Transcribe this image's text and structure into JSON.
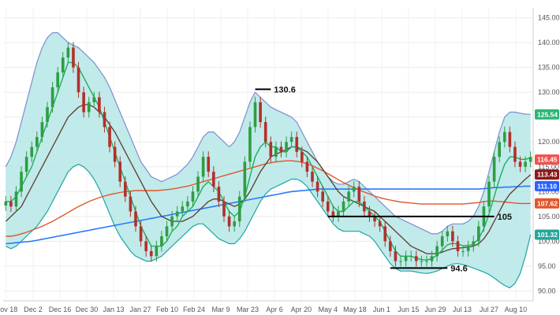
{
  "chart_data": {
    "type": "candlestick",
    "title": "",
    "xlabel": "",
    "ylabel": "",
    "ylim": [
      88,
      147
    ],
    "y_ticks": [
      "145.00",
      "140.00",
      "135.00",
      "130.00",
      "125.00",
      "120.00",
      "115.00",
      "110.00",
      "105.00",
      "100.00",
      "95.00",
      "90.00"
    ],
    "y_tick_values": [
      145,
      140,
      135,
      130,
      125,
      120,
      115,
      110,
      105,
      100,
      95,
      90
    ],
    "x_ticks": [
      "Nov 18",
      "Dec 2",
      "Dec 16",
      "Dec 30",
      "Jan 13",
      "Jan 27",
      "Feb 10",
      "Feb 24",
      "Mar 9",
      "Mar 23",
      "Apr 6",
      "Apr 20",
      "May 4",
      "May 18",
      "Jun 1",
      "Jun 15",
      "Jun 29",
      "Jul 13",
      "Jul 27",
      "Aug 10"
    ],
    "grid": true,
    "series": [
      {
        "role": "close",
        "values": [
          108,
          107,
          110,
          114,
          117,
          119,
          121,
          124,
          127,
          131,
          134,
          137,
          139,
          135,
          130,
          126,
          128,
          129,
          126,
          123,
          119,
          116,
          112,
          109,
          106,
          103,
          100,
          98,
          97,
          99,
          101,
          103,
          105,
          106,
          107,
          108,
          110,
          113,
          117,
          114,
          111,
          108,
          105,
          103,
          104,
          109,
          116,
          123,
          128,
          124,
          120,
          117,
          119,
          118,
          120,
          121,
          118,
          116,
          114,
          112,
          110,
          108,
          106,
          105,
          106,
          108,
          110,
          111,
          108,
          106,
          105,
          104,
          103,
          100,
          98,
          96,
          96,
          97,
          97,
          96,
          96,
          96,
          97,
          99,
          101,
          102,
          100,
          98,
          98,
          99,
          100,
          103,
          107,
          112,
          117,
          120,
          122,
          119,
          116,
          115,
          116,
          117
        ]
      },
      {
        "role": "ma_fast",
        "values": [
          108,
          108,
          109,
          111,
          113,
          115,
          118,
          121,
          124,
          127,
          130,
          133,
          136,
          136,
          135,
          133,
          131,
          129,
          127,
          124,
          121,
          118,
          115,
          112,
          109,
          106,
          103,
          101,
          99,
          99,
          99,
          100,
          102,
          103,
          105,
          106,
          107,
          109,
          111,
          112,
          111,
          110,
          108,
          106,
          105,
          106,
          109,
          113,
          117,
          119,
          120,
          119,
          119,
          118,
          118,
          119,
          119,
          118,
          117,
          115,
          113,
          111,
          109,
          107,
          106,
          106,
          107,
          108,
          108,
          107,
          106,
          105,
          104,
          102,
          100,
          98,
          97,
          97,
          97,
          96.6,
          96.3,
          96.2,
          96.5,
          97.2,
          98.2,
          99.3,
          99.6,
          99.4,
          99.1,
          99.1,
          99.4,
          100.5,
          102.5,
          105.5,
          109,
          112.5,
          115.5,
          117,
          117,
          116.5,
          116.5,
          116.8
        ]
      },
      {
        "role": "ma_mid",
        "values": [
          104,
          105,
          106,
          107,
          109,
          111,
          113,
          115,
          117,
          119,
          121,
          123,
          125,
          126,
          127,
          127.5,
          127.5,
          127,
          126,
          125,
          123.5,
          122,
          120,
          118,
          116,
          114,
          112,
          110,
          108,
          106.5,
          105,
          104.5,
          104,
          104,
          104,
          104.5,
          105,
          106,
          107,
          108,
          108.5,
          108.5,
          108,
          107.5,
          107,
          107.5,
          108.5,
          110,
          112,
          114,
          115.5,
          117,
          117.5,
          118,
          118.5,
          119,
          119,
          118.5,
          118,
          117,
          116,
          114.5,
          113,
          111.5,
          110,
          109,
          108.5,
          108,
          107.5,
          107,
          106.5,
          106,
          105,
          104,
          103,
          102,
          101,
          100,
          99,
          98.5,
          98,
          97.5,
          97.5,
          97.5,
          97.8,
          98.2,
          98.5,
          98.6,
          98.7,
          98.8,
          99,
          99.5,
          100.5,
          102,
          104,
          106,
          108,
          109.5,
          110.5,
          111.5,
          112.5,
          113.4
        ]
      },
      {
        "role": "ma_long",
        "values": [
          101,
          101,
          101.2,
          101.5,
          101.8,
          102.2,
          102.6,
          103,
          103.5,
          104,
          104.6,
          105.2,
          105.8,
          106.4,
          107,
          107.5,
          108,
          108.4,
          108.8,
          109.1,
          109.4,
          109.6,
          109.8,
          110,
          110.1,
          110.2,
          110.2,
          110.2,
          110.2,
          110.2,
          110.3,
          110.4,
          110.5,
          110.7,
          110.9,
          111.1,
          111.4,
          111.7,
          112,
          112.3,
          112.6,
          112.9,
          113.2,
          113.5,
          113.8,
          114.1,
          114.4,
          114.7,
          115,
          115.3,
          115.6,
          115.8,
          116,
          116.1,
          116.2,
          116.2,
          116.1,
          115.9,
          115.6,
          115.2,
          114.7,
          114.2,
          113.6,
          113,
          112.4,
          111.8,
          111.3,
          110.8,
          110.3,
          109.9,
          109.5,
          109.1,
          108.8,
          108.5,
          108.3,
          108.1,
          107.9,
          107.8,
          107.7,
          107.6,
          107.5,
          107.5,
          107.5,
          107.5,
          107.5,
          107.5,
          107.5,
          107.5,
          107.5,
          107.6,
          107.7,
          107.8,
          108,
          108.1,
          108.1,
          108,
          107.9,
          107.8,
          107.7,
          107.6,
          107.6,
          107.62
        ]
      },
      {
        "role": "ma_longest",
        "values": [
          99.5,
          99.6,
          99.7,
          99.8,
          99.9,
          100,
          100.2,
          100.4,
          100.6,
          100.8,
          101,
          101.2,
          101.4,
          101.6,
          101.8,
          102,
          102.2,
          102.4,
          102.6,
          102.8,
          103,
          103.2,
          103.4,
          103.6,
          103.8,
          104,
          104.2,
          104.4,
          104.6,
          104.8,
          105,
          105.2,
          105.4,
          105.6,
          105.8,
          106,
          106.2,
          106.4,
          106.6,
          106.8,
          107,
          107.2,
          107.4,
          107.6,
          107.8,
          108,
          108.2,
          108.4,
          108.6,
          108.8,
          109,
          109.2,
          109.4,
          109.6,
          109.8,
          110,
          110.1,
          110.2,
          110.3,
          110.4,
          110.5,
          110.5,
          110.5,
          110.5,
          110.5,
          110.5,
          110.5,
          110.5,
          110.5,
          110.5,
          110.5,
          110.5,
          110.5,
          110.5,
          110.5,
          110.5,
          110.5,
          110.5,
          110.5,
          110.5,
          110.5,
          110.5,
          110.5,
          110.5,
          110.5,
          110.5,
          110.5,
          110.5,
          110.5,
          110.5,
          110.5,
          110.5,
          110.6,
          110.7,
          110.8,
          110.8,
          110.9,
          110.9,
          111,
          111,
          111.1,
          111.1
        ]
      },
      {
        "role": "bb_upper",
        "values": [
          115,
          117,
          120,
          124,
          128,
          132,
          136,
          139,
          141,
          142,
          142,
          141,
          140,
          139.5,
          139,
          138,
          137,
          136,
          134.5,
          133,
          131,
          128.5,
          126,
          123.5,
          121,
          118.5,
          116,
          114.5,
          113,
          112.5,
          112,
          112.5,
          113,
          113.5,
          114.5,
          115.5,
          117,
          119,
          121,
          122,
          122,
          121,
          120,
          119,
          120,
          122,
          125,
          128,
          130,
          129,
          128,
          127,
          126.5,
          126,
          125.5,
          125,
          124,
          122,
          120,
          118,
          116,
          114.5,
          113,
          112,
          111.5,
          111.5,
          112,
          112.5,
          112,
          111,
          110,
          109,
          108,
          107,
          106,
          105,
          104.5,
          104,
          103.5,
          103,
          102.5,
          102,
          101.5,
          101.5,
          102,
          103,
          103.5,
          103.5,
          103.5,
          104,
          105,
          107,
          110,
          114,
          118,
          122,
          125,
          126,
          126,
          125.8,
          125.6,
          125.54
        ]
      },
      {
        "role": "bb_lower",
        "values": [
          99,
          98.5,
          99,
          100,
          101,
          102,
          103,
          104.5,
          106,
          108,
          110,
          112,
          114,
          115,
          115.5,
          115,
          114,
          112.5,
          110.5,
          108,
          105.5,
          103,
          101,
          99.5,
          98,
          97,
          96.5,
          96,
          96,
          96.5,
          97,
          98,
          99,
          100,
          101,
          102,
          103,
          103.5,
          103.5,
          102.5,
          101.5,
          100.5,
          100,
          99.5,
          99.5,
          100.5,
          102,
          104,
          106,
          108,
          109.5,
          110.5,
          111,
          111.5,
          112,
          112.5,
          112.5,
          112,
          111,
          109.5,
          108,
          106.5,
          105,
          103.5,
          102.5,
          102,
          102,
          102,
          102,
          101.5,
          101,
          100,
          98.5,
          97,
          95.5,
          94.5,
          94,
          94,
          94,
          93.8,
          93.6,
          93.5,
          93.7,
          94,
          94.5,
          95,
          95.4,
          95.5,
          95.3,
          95,
          94.6,
          94.2,
          93.8,
          93.3,
          92.6,
          91.8,
          91.1,
          90.6,
          91.5,
          93.5,
          97,
          101.32
        ]
      }
    ],
    "annotations": [
      {
        "label": "130.6",
        "value": 130.6,
        "from_index": 48,
        "to_index": 51
      },
      {
        "label": "105",
        "value": 105,
        "from_index": 62,
        "to_index": 94
      },
      {
        "label": "94.6",
        "value": 94.6,
        "from_index": 74,
        "to_index": 85
      }
    ],
    "price_badges": [
      {
        "label": "125.54",
        "value": 125.54,
        "color": "#2bb673"
      },
      {
        "label": "116.45",
        "value": 116.45,
        "color": "#ef5350"
      },
      {
        "label": "113.43",
        "value": 113.43,
        "color": "#8b1a1a"
      },
      {
        "label": "111.10",
        "value": 111.1,
        "color": "#2962ff"
      },
      {
        "label": "107.62",
        "value": 107.62,
        "color": "#e0562a"
      },
      {
        "label": "101.32",
        "value": 101.32,
        "color": "#26a69a"
      }
    ],
    "colors": {
      "band_fill": "#b6e6e6",
      "band_upper": "#7b8fcf",
      "band_lower": "#1aa8a0",
      "ma_fast": "#1bb05a",
      "ma_mid": "#5c3b2e",
      "ma_long": "#e0562a",
      "ma_longest": "#2979ff",
      "candle_up": "#2e9d44",
      "candle_down": "#b2302c",
      "annotation": "#000000"
    }
  }
}
